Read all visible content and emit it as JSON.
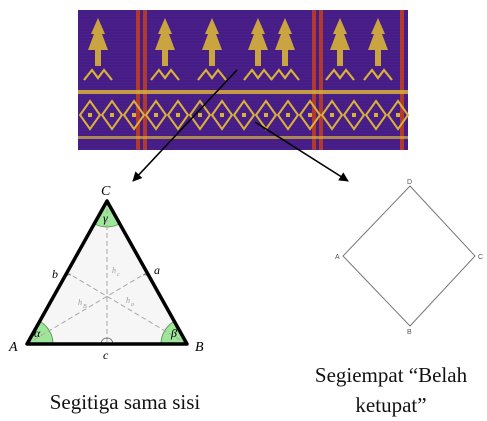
{
  "fabric": {
    "colors": {
      "background": "#4a1f8c",
      "gold": "#d9b23a",
      "stripe": "#b03a2e",
      "dark": "#2c124f"
    }
  },
  "triangle": {
    "vertex_labels": {
      "A": "A",
      "B": "B",
      "C": "C"
    },
    "side_labels": {
      "a": "a",
      "b": "b",
      "c": "c"
    },
    "angle_labels": {
      "alpha": "α",
      "beta": "β",
      "gamma": "γ"
    },
    "altitude_labels": {
      "hc": "h",
      "hc_sub": "c",
      "hb": "h",
      "hb_sub": "B",
      "ha": "h",
      "ha_sub": "a"
    },
    "colors": {
      "angle_fill": "#9fe59a",
      "interior": "#f6f6f6",
      "edge": "#000000",
      "altitude": "#a8a8a8"
    }
  },
  "rhombus": {
    "vertex_labels": {
      "top": "D",
      "left": "A",
      "right": "C",
      "bottom": "B"
    }
  },
  "captions": {
    "triangle": "Segitiga sama sisi",
    "rhombus_line1": "Segiempat “Belah",
    "rhombus_line2": "ketupat”"
  }
}
